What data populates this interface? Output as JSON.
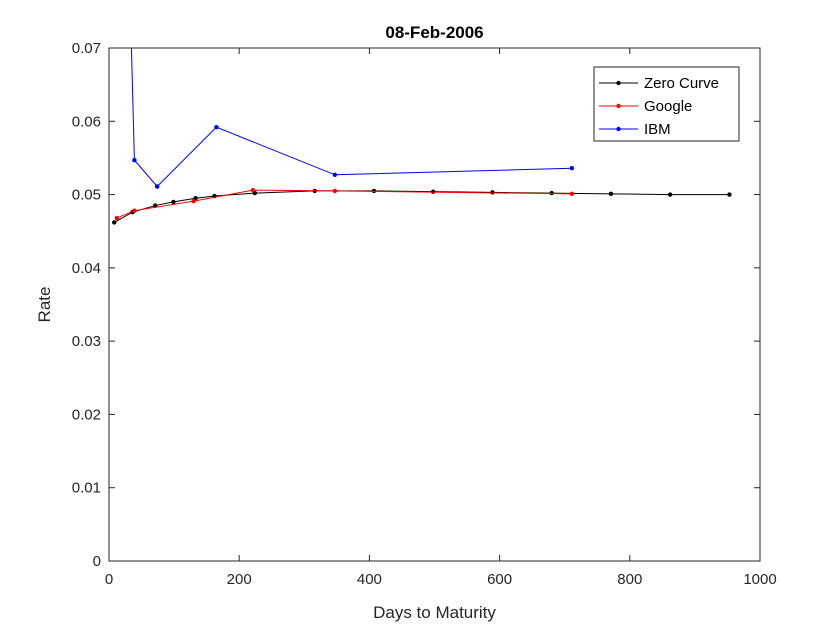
{
  "chart_data": {
    "type": "line",
    "title": "08-Feb-2006",
    "xlabel": "Days to Maturity",
    "ylabel": "Rate",
    "xlim": [
      0,
      1000
    ],
    "ylim": [
      0,
      0.07
    ],
    "xticks": [
      0,
      200,
      400,
      600,
      800,
      1000
    ],
    "yticks": [
      0,
      0.01,
      0.02,
      0.03,
      0.04,
      0.05,
      0.06,
      0.07
    ],
    "xtick_labels": [
      "0",
      "200",
      "400",
      "600",
      "800",
      "1000"
    ],
    "ytick_labels": [
      "0",
      "0.01",
      "0.02",
      "0.03",
      "0.04",
      "0.05",
      "0.06",
      "0.07"
    ],
    "grid": false,
    "legend_position": "top-right",
    "series": [
      {
        "name": "Zero Curve",
        "color": "#000000",
        "x": [
          8,
          36,
          71,
          99,
          133,
          162,
          224,
          316,
          407,
          498,
          589,
          680,
          771,
          862,
          953
        ],
        "y": [
          0.0462,
          0.0476,
          0.0485,
          0.049,
          0.0495,
          0.0498,
          0.0502,
          0.0505,
          0.0505,
          0.0504,
          0.0503,
          0.0502,
          0.0501,
          0.05,
          0.05
        ]
      },
      {
        "name": "Google",
        "color": "#ff0000",
        "x": [
          12,
          39,
          130,
          221,
          347,
          711
        ],
        "y": [
          0.0468,
          0.0478,
          0.0491,
          0.0506,
          0.0505,
          0.0501
        ]
      },
      {
        "name": "IBM",
        "color": "#0000ff",
        "x": [
          33,
          39,
          74,
          165,
          347,
          711
        ],
        "y": [
          0.075,
          0.0547,
          0.0511,
          0.0592,
          0.0527,
          0.0536
        ]
      }
    ]
  }
}
